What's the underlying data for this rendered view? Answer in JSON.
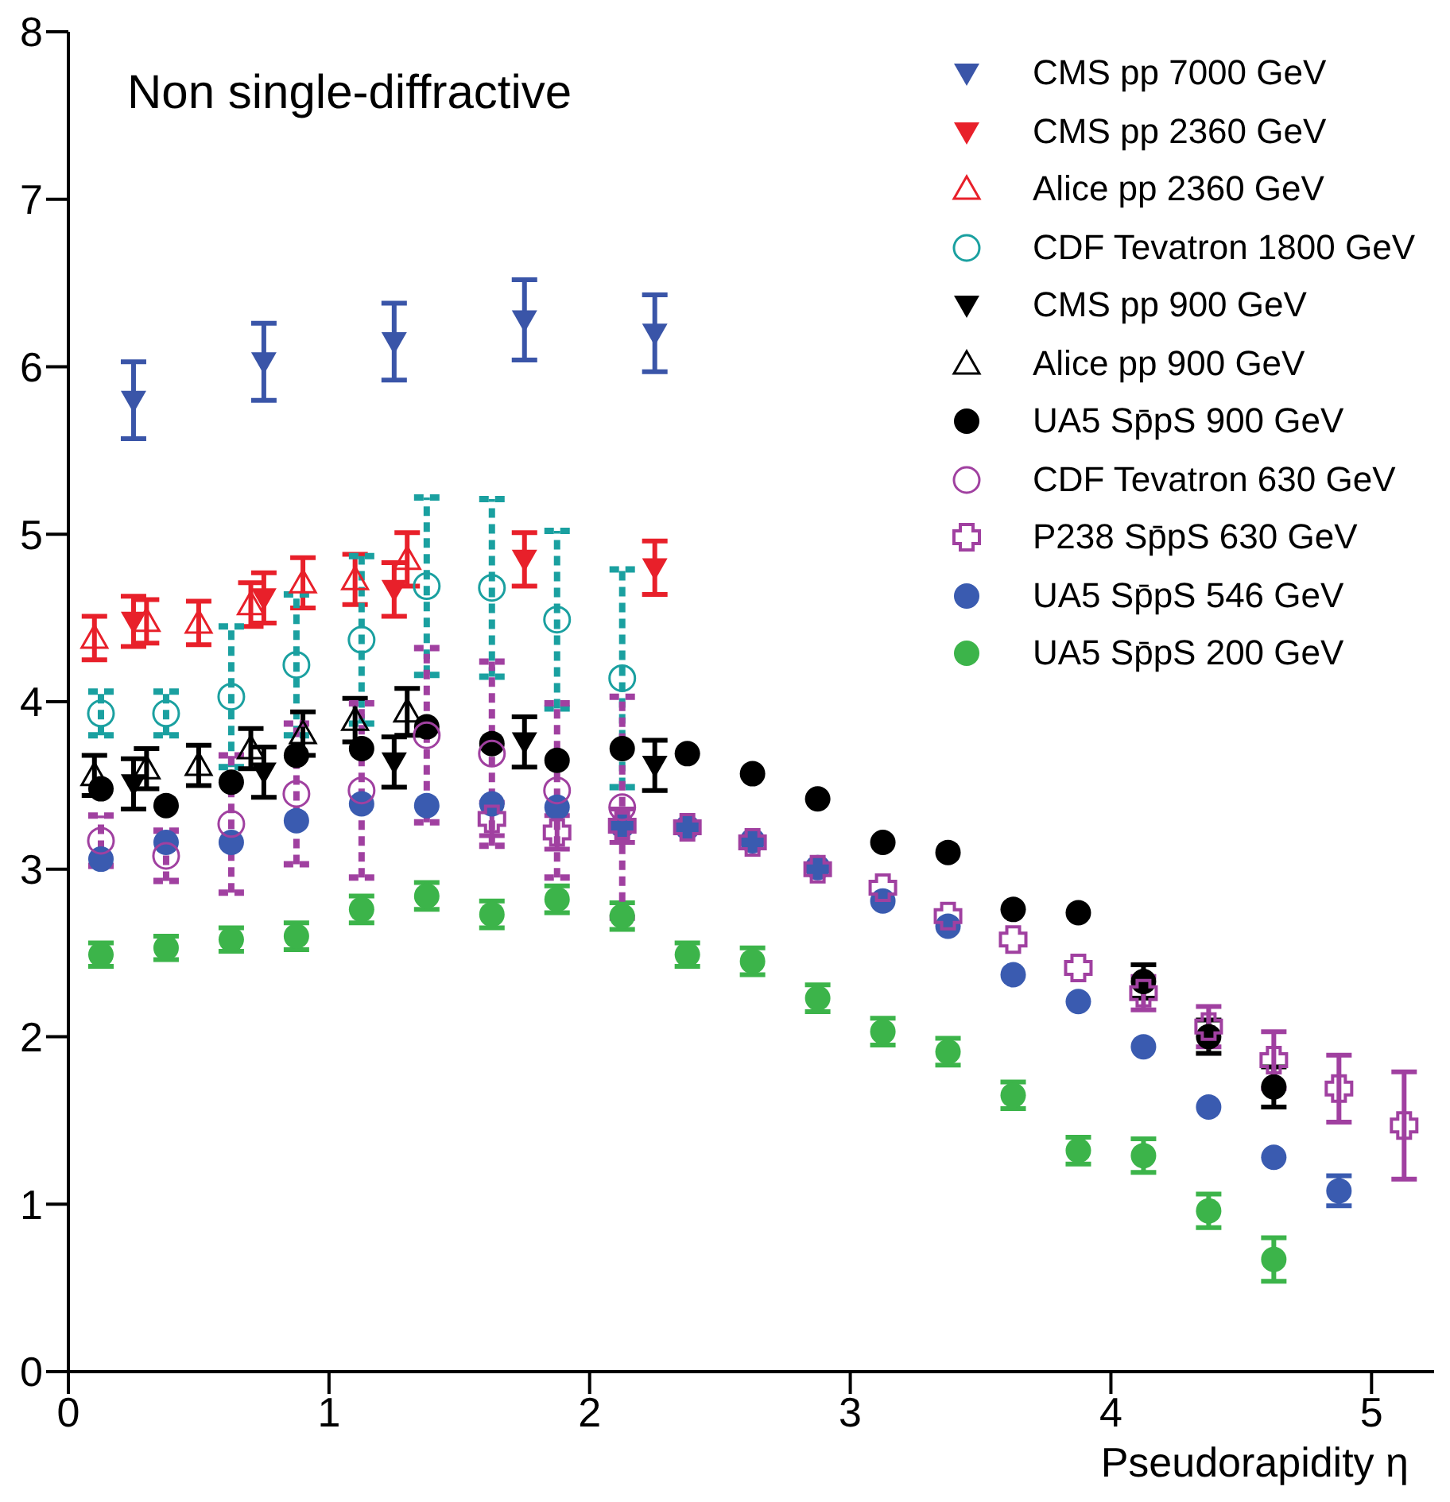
{
  "chart_data": {
    "type": "scatter",
    "title": "Non single-diffractive",
    "xlabel": "Pseudorapidity η",
    "xlim": [
      0,
      5.24
    ],
    "xticks": [
      0,
      1,
      2,
      3,
      4,
      5
    ],
    "ylim": [
      0,
      8
    ],
    "yticks": [
      0,
      1,
      2,
      3,
      4,
      5,
      6,
      7,
      8
    ],
    "legend": "top right",
    "series": [
      {
        "name": "CMS pp 7000 GeV",
        "color": "#3a55a8",
        "marker": "triangle-down",
        "x": [
          0.25,
          0.75,
          1.25,
          1.75,
          2.25
        ],
        "values": [
          5.8,
          6.03,
          6.15,
          6.28,
          6.2
        ],
        "errors": [
          0.23,
          0.23,
          0.23,
          0.24,
          0.23
        ]
      },
      {
        "name": "CMS pp 2360 GeV",
        "color": "#e8202a",
        "marker": "triangle-down",
        "x": [
          0.25,
          0.75,
          1.25,
          1.75,
          2.25
        ],
        "values": [
          4.48,
          4.62,
          4.67,
          4.85,
          4.8
        ],
        "errors": [
          0.15,
          0.15,
          0.16,
          0.16,
          0.16
        ]
      },
      {
        "name": "Alice pp 2360 GeV",
        "color": "#e8202a",
        "marker": "triangle-open",
        "x": [
          0.1,
          0.3,
          0.5,
          0.7,
          0.9,
          1.1,
          1.3
        ],
        "values": [
          4.38,
          4.48,
          4.47,
          4.58,
          4.71,
          4.73,
          4.85
        ],
        "errors": [
          0.13,
          0.13,
          0.13,
          0.13,
          0.15,
          0.15,
          0.16
        ]
      },
      {
        "name": "CDF Tevatron 1800 GeV",
        "color": "#1aa0a0",
        "marker": "circle-open",
        "line_style": "dashed",
        "x": [
          0.125,
          0.375,
          0.625,
          0.875,
          1.125,
          1.375,
          1.625,
          1.875,
          2.125
        ],
        "values": [
          3.93,
          3.93,
          4.03,
          4.22,
          4.37,
          4.69,
          4.68,
          4.49,
          4.14
        ],
        "errors": [
          0.13,
          0.13,
          0.42,
          0.42,
          0.5,
          0.53,
          0.53,
          0.53,
          0.65
        ]
      },
      {
        "name": "CMS pp 900 GeV",
        "color": "#000000",
        "marker": "triangle-down",
        "x": [
          0.25,
          0.75,
          1.25,
          1.75,
          2.25
        ],
        "values": [
          3.51,
          3.58,
          3.64,
          3.76,
          3.62
        ],
        "errors": [
          0.15,
          0.15,
          0.15,
          0.15,
          0.15
        ]
      },
      {
        "name": "Alice pp 900 GeV",
        "color": "#000000",
        "marker": "triangle-open",
        "x": [
          0.1,
          0.3,
          0.5,
          0.7,
          0.9,
          1.1,
          1.3
        ],
        "values": [
          3.56,
          3.6,
          3.62,
          3.72,
          3.81,
          3.89,
          3.94
        ],
        "errors": [
          0.12,
          0.12,
          0.12,
          0.12,
          0.13,
          0.13,
          0.14
        ]
      },
      {
        "name": "UA5 Sp̄pS 900 GeV",
        "color": "#000000",
        "marker": "circle",
        "x": [
          0.125,
          0.375,
          0.625,
          0.875,
          1.125,
          1.375,
          1.625,
          1.875,
          2.125,
          2.375,
          2.625,
          2.875,
          3.125,
          3.375,
          3.625,
          3.875,
          4.125,
          4.375,
          4.625
        ],
        "values": [
          3.48,
          3.38,
          3.52,
          3.68,
          3.72,
          3.85,
          3.75,
          3.65,
          3.72,
          3.69,
          3.57,
          3.42,
          3.16,
          3.1,
          2.76,
          2.74,
          2.33,
          2.0,
          1.7
        ],
        "errors": [
          null,
          null,
          null,
          null,
          null,
          null,
          null,
          null,
          null,
          null,
          null,
          null,
          null,
          null,
          null,
          null,
          0.1,
          0.1,
          0.12
        ]
      },
      {
        "name": "CDF Tevatron 630 GeV",
        "color": "#a040a0",
        "marker": "circle-open",
        "line_style": "dashed",
        "x": [
          0.125,
          0.375,
          0.625,
          0.875,
          1.125,
          1.375,
          1.625,
          1.875,
          2.125
        ],
        "values": [
          3.17,
          3.08,
          3.27,
          3.45,
          3.47,
          3.8,
          3.69,
          3.47,
          3.37
        ],
        "errors": [
          0.15,
          0.15,
          0.41,
          0.42,
          0.52,
          0.52,
          0.55,
          0.52,
          0.66
        ]
      },
      {
        "name": "P238 Sp̄pS 630 GeV",
        "color": "#a040a0",
        "marker": "cross-open",
        "x": [
          1.625,
          1.875,
          2.125,
          2.375,
          2.625,
          2.875,
          3.125,
          3.375,
          3.625,
          3.875,
          4.125,
          4.375,
          4.625,
          4.875,
          5.125
        ],
        "values": [
          3.3,
          3.22,
          3.26,
          3.25,
          3.16,
          3.0,
          2.89,
          2.72,
          2.58,
          2.41,
          2.26,
          2.06,
          1.86,
          1.69,
          1.47
        ],
        "errors": [
          0.1,
          0.1,
          0.1,
          null,
          null,
          null,
          null,
          null,
          null,
          null,
          0.1,
          0.12,
          0.17,
          0.2,
          0.32
        ]
      },
      {
        "name": "UA5 Sp̄pS 546 GeV",
        "color": "#3a5bb0",
        "marker": "circle",
        "x": [
          0.125,
          0.375,
          0.625,
          0.875,
          1.125,
          1.375,
          1.625,
          1.875,
          2.125,
          2.375,
          2.625,
          2.875,
          3.125,
          3.375,
          3.625,
          3.875,
          4.125,
          4.375,
          4.625,
          4.875
        ],
        "values": [
          3.06,
          3.16,
          3.16,
          3.29,
          3.39,
          3.38,
          3.39,
          3.37,
          3.26,
          3.25,
          3.17,
          3.01,
          2.81,
          2.66,
          2.37,
          2.21,
          1.94,
          1.58,
          1.28,
          1.08
        ],
        "errors": [
          null,
          null,
          null,
          null,
          null,
          null,
          null,
          null,
          null,
          null,
          null,
          null,
          null,
          null,
          null,
          null,
          null,
          null,
          null,
          0.09
        ]
      },
      {
        "name": "UA5 Sp̄pS 200 GeV",
        "color": "#3cb44a",
        "marker": "circle",
        "x": [
          0.125,
          0.375,
          0.625,
          0.875,
          1.125,
          1.375,
          1.625,
          1.875,
          2.125,
          2.375,
          2.625,
          2.875,
          3.125,
          3.375,
          3.625,
          3.875,
          4.125,
          4.375,
          4.625
        ],
        "values": [
          2.49,
          2.53,
          2.58,
          2.6,
          2.76,
          2.84,
          2.73,
          2.82,
          2.72,
          2.49,
          2.45,
          2.23,
          2.03,
          1.91,
          1.65,
          1.32,
          1.29,
          0.96,
          0.67
        ],
        "errors": [
          0.07,
          0.07,
          0.07,
          0.08,
          0.08,
          0.08,
          0.08,
          0.08,
          0.08,
          0.07,
          0.08,
          0.08,
          0.08,
          0.08,
          0.08,
          0.08,
          0.1,
          0.1,
          0.13
        ]
      }
    ]
  }
}
